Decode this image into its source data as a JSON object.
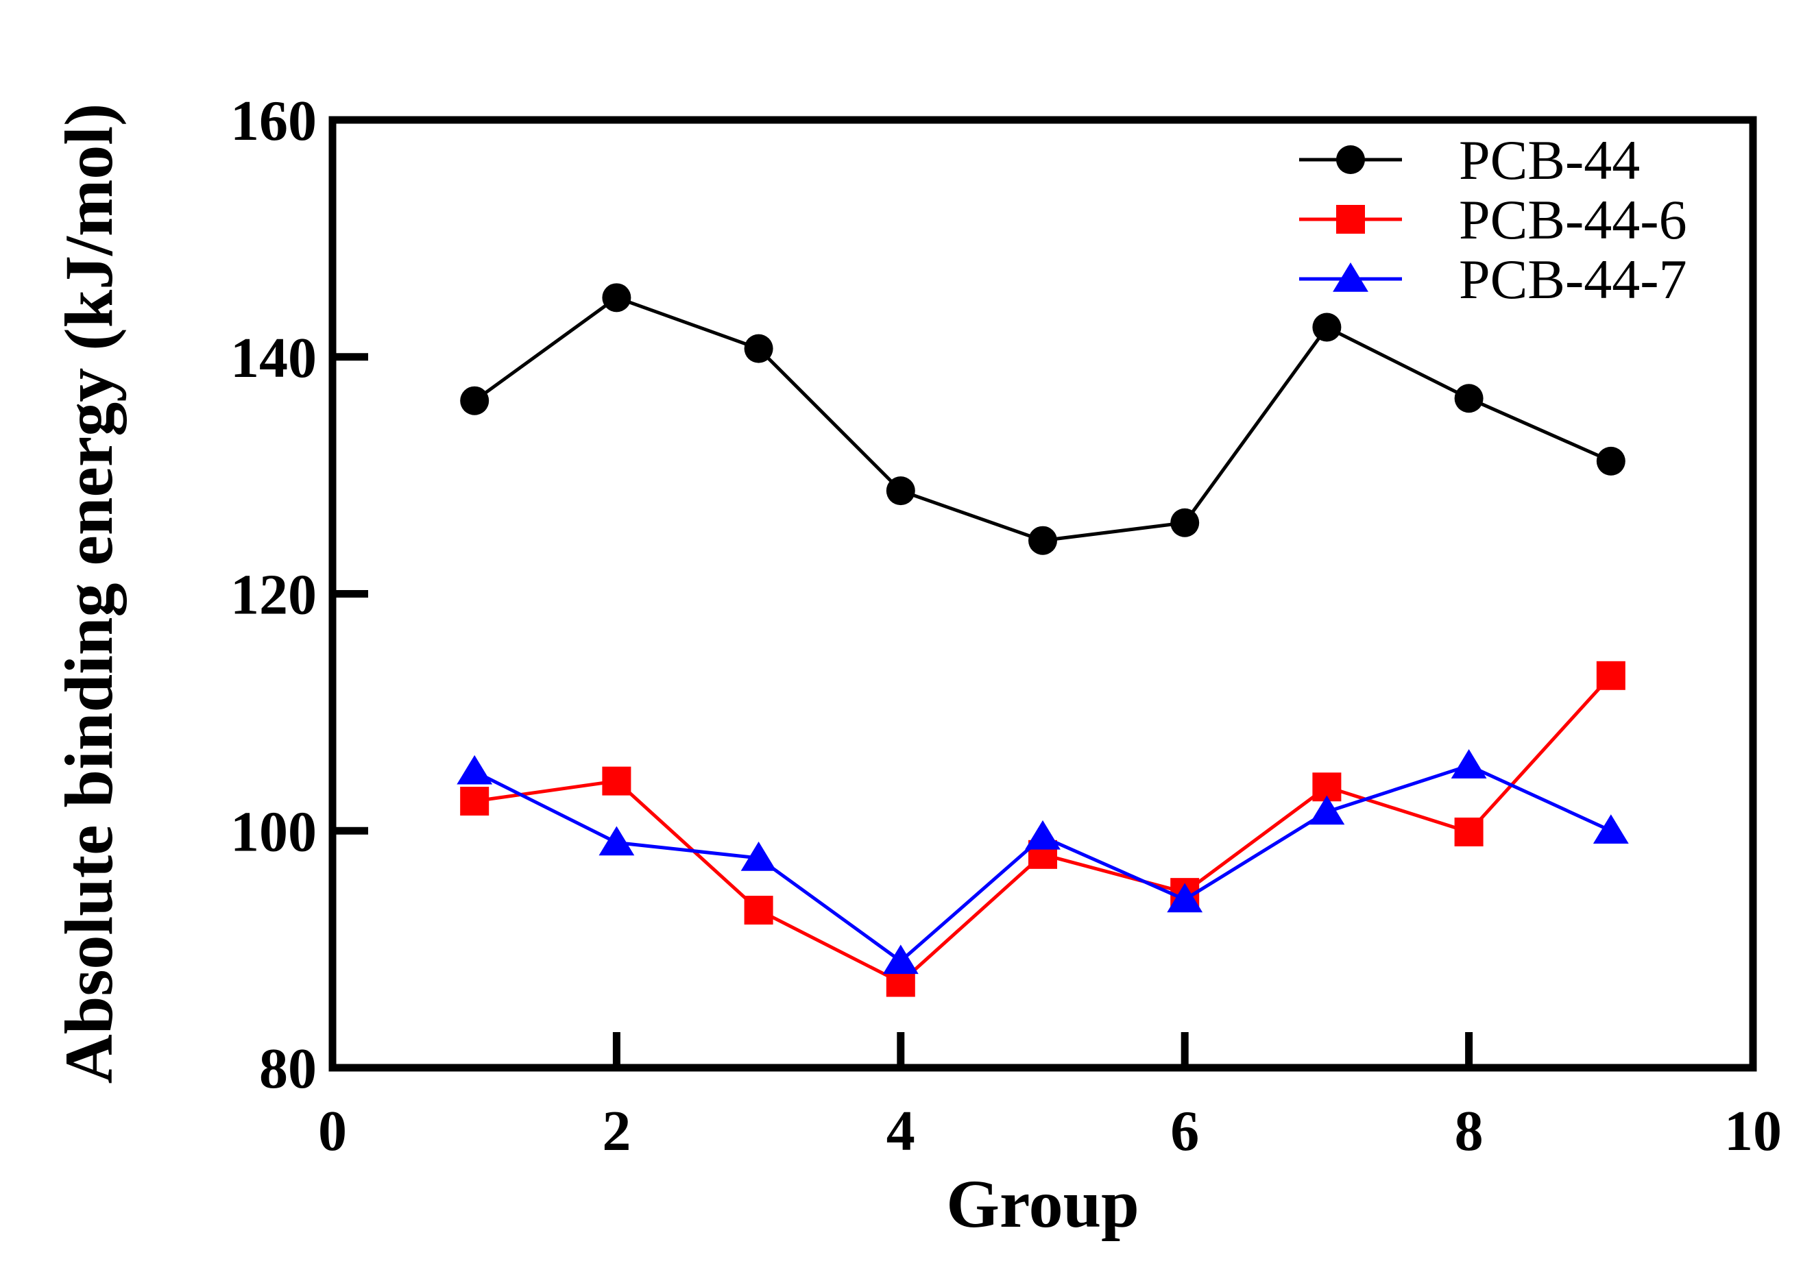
{
  "chart_data": {
    "type": "line",
    "title": "",
    "xlabel": "Group",
    "ylabel": "Absolute binding energy (kJ/mol)",
    "xlim": [
      0,
      10
    ],
    "ylim": [
      80,
      160
    ],
    "xticks": [
      0,
      2,
      4,
      6,
      8,
      10
    ],
    "yticks": [
      80,
      100,
      120,
      140,
      160
    ],
    "x": [
      1,
      2,
      3,
      4,
      5,
      6,
      7,
      8,
      9
    ],
    "grid": false,
    "legend_position": "top-right",
    "series": [
      {
        "name": "PCB-44",
        "color": "#000000",
        "marker": "circle",
        "values": [
          136.3,
          145.0,
          140.7,
          128.7,
          124.5,
          126.0,
          142.5,
          136.5,
          131.2
        ]
      },
      {
        "name": "PCB-44-6",
        "color": "#ff0000",
        "marker": "square",
        "values": [
          102.5,
          104.2,
          93.3,
          87.2,
          98.0,
          94.8,
          103.7,
          99.9,
          113.1
        ]
      },
      {
        "name": "PCB-44-7",
        "color": "#0000ff",
        "marker": "triangle",
        "values": [
          105.0,
          99.0,
          97.7,
          89.0,
          99.5,
          94.2,
          101.6,
          105.5,
          100.0
        ]
      }
    ]
  }
}
